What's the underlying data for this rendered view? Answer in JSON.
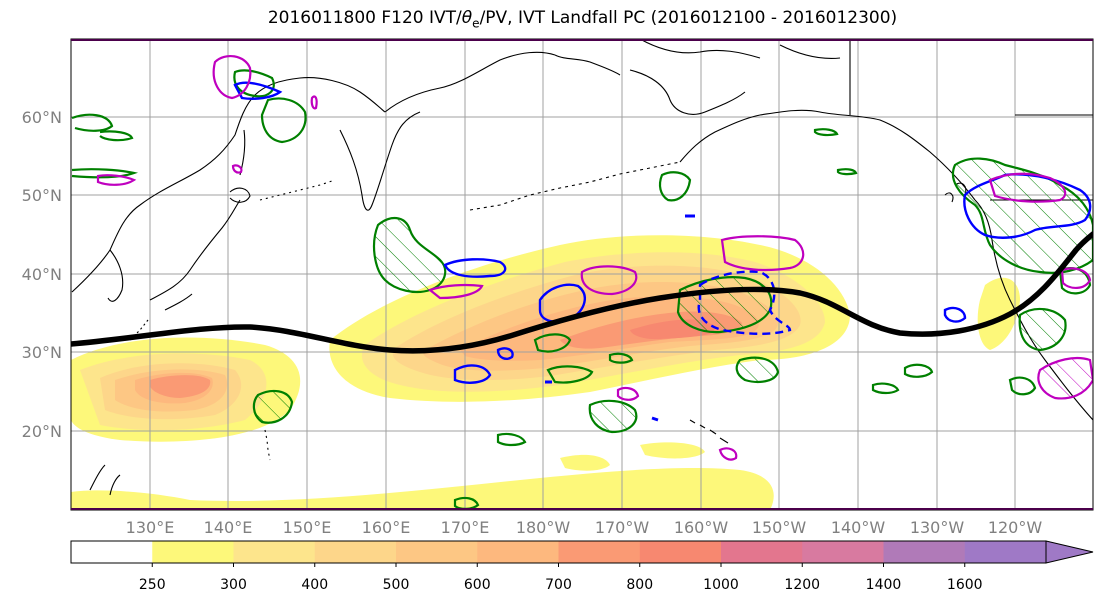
{
  "title": {
    "prefix": "2016011800 F120 IVT/",
    "theta": "θ",
    "sub": "e",
    "suffix": "/PV, IVT Landfall PC (2016012100 - 2016012300)"
  },
  "map": {
    "projection": "equirectangular",
    "lon_labels": [
      "130°E",
      "140°E",
      "150°E",
      "160°E",
      "170°E",
      "180°W",
      "170°W",
      "160°W",
      "150°W",
      "140°W",
      "130°W",
      "120°W"
    ],
    "lat_labels": [
      "60°N",
      "50°N",
      "40°N",
      "30°N",
      "20°N"
    ],
    "grid": true
  },
  "colorbar": {
    "levels": [
      "250",
      "300",
      "400",
      "500",
      "600",
      "700",
      "800",
      "1000",
      "1200",
      "1400",
      "1600"
    ],
    "colors": [
      "#ffffff",
      "#fdf87a",
      "#fde58c",
      "#fdd68a",
      "#fdc784",
      "#fdb87e",
      "#fa9a74",
      "#f78870",
      "#e3768e",
      "#d87aa0",
      "#b07ab8",
      "#9f79c6"
    ]
  },
  "legend_colors": {
    "landfall_line": "#000000",
    "pv_contour": "#0000ff",
    "theta_contour": "#008000",
    "ivt_contour": "#bf00bf"
  }
}
